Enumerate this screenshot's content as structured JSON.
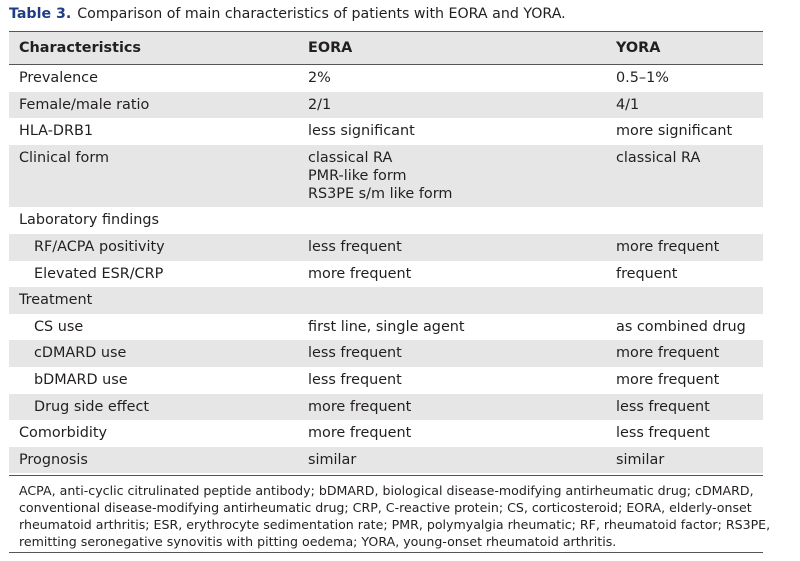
{
  "caption": {
    "label": "Table 3.",
    "text": "Comparison of main characteristics of patients with EORA and YORA."
  },
  "headers": [
    "Characteristics",
    "EORA",
    "YORA"
  ],
  "rows": [
    {
      "c1": "Prevalence",
      "c2": [
        "2%"
      ],
      "c3": "0.5–1%",
      "indent": false,
      "shade": false
    },
    {
      "c1": "Female/male ratio",
      "c2": [
        "2/1"
      ],
      "c3": "4/1",
      "indent": false,
      "shade": true
    },
    {
      "c1": "HLA-DRB1",
      "c2": [
        "less significant"
      ],
      "c3": "more significant",
      "indent": false,
      "shade": false
    },
    {
      "c1": "Clinical form",
      "c2": [
        "classical RA",
        "PMR-like form",
        "RS3PE s/m like form"
      ],
      "c3": "classical RA",
      "indent": false,
      "shade": true
    },
    {
      "c1": "Laboratory findings",
      "c2": [
        ""
      ],
      "c3": "",
      "indent": false,
      "shade": false
    },
    {
      "c1": "RF/ACPA positivity",
      "c2": [
        "less frequent"
      ],
      "c3": "more frequent",
      "indent": true,
      "shade": true
    },
    {
      "c1": "Elevated ESR/CRP",
      "c2": [
        "more frequent"
      ],
      "c3": "frequent",
      "indent": true,
      "shade": false
    },
    {
      "c1": "Treatment",
      "c2": [
        ""
      ],
      "c3": "",
      "indent": false,
      "shade": true
    },
    {
      "c1": "CS use",
      "c2": [
        "first line, single agent"
      ],
      "c3": "as combined drug",
      "indent": true,
      "shade": false
    },
    {
      "c1": "cDMARD use",
      "c2": [
        "less frequent"
      ],
      "c3": "more frequent",
      "indent": true,
      "shade": true
    },
    {
      "c1": "bDMARD use",
      "c2": [
        "less frequent"
      ],
      "c3": "more frequent",
      "indent": true,
      "shade": false
    },
    {
      "c1": "Drug side effect",
      "c2": [
        "more frequent"
      ],
      "c3": "less frequent",
      "indent": true,
      "shade": true
    },
    {
      "c1": "Comorbidity",
      "c2": [
        "more frequent"
      ],
      "c3": "less frequent",
      "indent": false,
      "shade": false
    },
    {
      "c1": "Prognosis",
      "c2": [
        "similar"
      ],
      "c3": "similar",
      "indent": false,
      "shade": true
    }
  ],
  "footnote": [
    "ACPA, anti-cyclic citrulinated peptide antibody; bDMARD, biological disease-modifying antirheumatic drug; cDMARD,",
    "conventional disease-modifying antirheumatic drug; CRP, C-reactive protein; CS, corticosteroid; EORA, elderly-onset",
    "rheumatoid arthritis; ESR, erythrocyte sedimentation rate; PMR, polymyalgia rheumatic; RF, rheumatoid factor; RS3PE,",
    "remitting seronegative synovitis with pitting oedema; YORA, young-onset rheumatoid arthritis."
  ]
}
